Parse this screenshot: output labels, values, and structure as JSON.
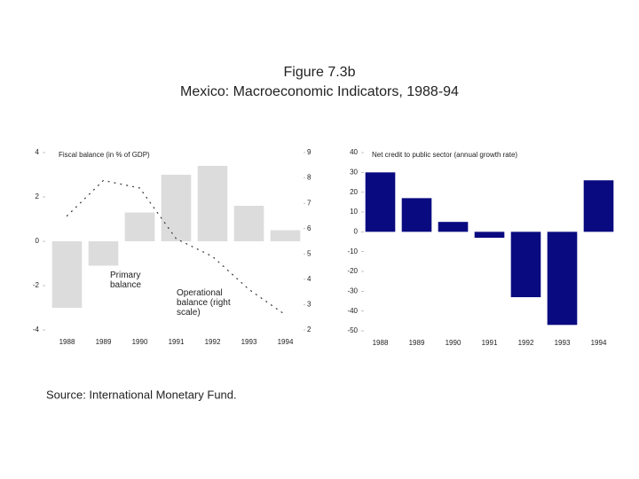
{
  "figure": {
    "title": "Figure 7.3b",
    "subtitle": "Mexico: Macroeconomic Indicators, 1988-94",
    "source": "Source: International Monetary Fund."
  },
  "chart_data": [
    {
      "type": "bar",
      "title": "Fiscal balance (in % of GDP)",
      "categories": [
        "1988",
        "1989",
        "1990",
        "1991",
        "1992",
        "1993",
        "1994"
      ],
      "series": [
        {
          "name": "Primary balance",
          "type": "bar",
          "color": "#dcdcdc",
          "values": [
            -3.0,
            -1.1,
            1.3,
            3.0,
            3.4,
            1.6,
            0.5
          ]
        },
        {
          "name": "Operational balance (right scale)",
          "type": "line",
          "axis": "y2",
          "color": "#333333",
          "values": [
            6.5,
            7.9,
            7.6,
            5.6,
            4.9,
            3.6,
            2.6
          ]
        }
      ],
      "ylim": [
        -4,
        4
      ],
      "yticks": [
        4,
        2,
        0,
        -2,
        -4
      ],
      "y2lim": [
        2,
        9
      ],
      "y2ticks": [
        9,
        8,
        7,
        6,
        5,
        4,
        3,
        2
      ]
    },
    {
      "type": "bar",
      "title": "Net credit to public sector (annual growth rate)",
      "categories": [
        "1988",
        "1989",
        "1990",
        "1991",
        "1992",
        "1993",
        "1994"
      ],
      "series": [
        {
          "type": "bar",
          "color": "#0a0a80",
          "values": [
            30,
            17,
            5,
            -3,
            -33,
            -47,
            26
          ]
        }
      ],
      "ylim": [
        -50,
        40
      ],
      "yticks": [
        40,
        30,
        20,
        10,
        0,
        -10,
        -20,
        -30,
        -40,
        -50
      ]
    }
  ]
}
